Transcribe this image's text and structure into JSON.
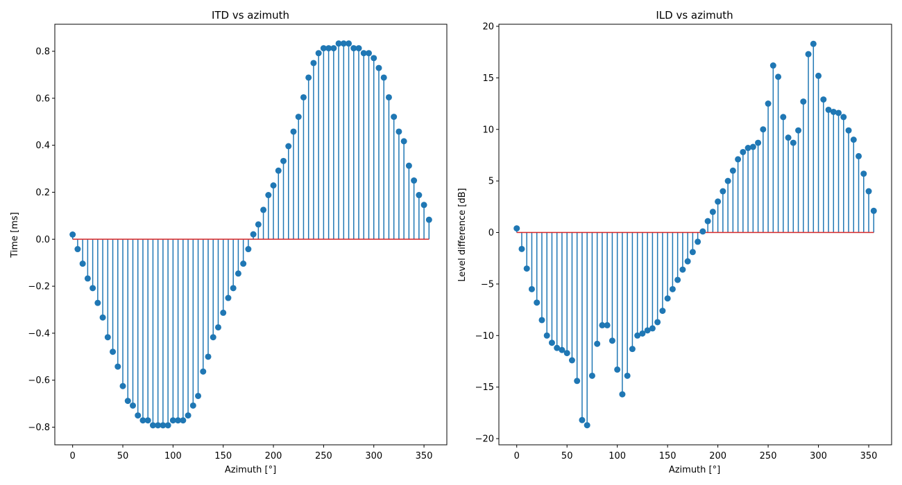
{
  "chart_data": [
    {
      "type": "stem",
      "title": "ITD vs azimuth",
      "xlabel": "Azimuth [°]",
      "ylabel": "Time [ms]",
      "xlim": [
        -17.75,
        372.75
      ],
      "ylim": [
        -0.875,
        0.915
      ],
      "xticks": [
        0,
        50,
        100,
        150,
        200,
        250,
        300,
        350
      ],
      "yticks": [
        -0.8,
        -0.6,
        -0.4,
        -0.2,
        0.0,
        0.2,
        0.4,
        0.6,
        0.8
      ],
      "ytick_labels": [
        "−0.8",
        "−0.6",
        "−0.4",
        "−0.2",
        "0.0",
        "0.2",
        "0.4",
        "0.6",
        "0.8"
      ],
      "baseline": 0,
      "colors": {
        "stem": "#1f77b4",
        "marker": "#1f77b4",
        "baseline": "#d62728"
      },
      "x": [
        0,
        5,
        10,
        15,
        20,
        25,
        30,
        35,
        40,
        45,
        50,
        55,
        60,
        65,
        70,
        75,
        80,
        85,
        90,
        95,
        100,
        105,
        110,
        115,
        120,
        125,
        130,
        135,
        140,
        145,
        150,
        155,
        160,
        165,
        170,
        175,
        180,
        185,
        190,
        195,
        200,
        205,
        210,
        215,
        220,
        225,
        230,
        235,
        240,
        245,
        250,
        255,
        260,
        265,
        270,
        275,
        280,
        285,
        290,
        295,
        300,
        305,
        310,
        315,
        320,
        325,
        330,
        335,
        340,
        345,
        350,
        355
      ],
      "y": [
        0.02,
        -0.042,
        -0.104,
        -0.167,
        -0.208,
        -0.271,
        -0.333,
        -0.417,
        -0.479,
        -0.542,
        -0.625,
        -0.688,
        -0.708,
        -0.75,
        -0.771,
        -0.771,
        -0.792,
        -0.792,
        -0.792,
        -0.792,
        -0.771,
        -0.771,
        -0.771,
        -0.75,
        -0.708,
        -0.667,
        -0.563,
        -0.5,
        -0.417,
        -0.375,
        -0.313,
        -0.25,
        -0.208,
        -0.146,
        -0.104,
        -0.042,
        0.021,
        0.063,
        0.125,
        0.188,
        0.229,
        0.292,
        0.333,
        0.396,
        0.458,
        0.521,
        0.604,
        0.688,
        0.75,
        0.792,
        0.813,
        0.813,
        0.813,
        0.833,
        0.833,
        0.833,
        0.813,
        0.813,
        0.792,
        0.792,
        0.771,
        0.729,
        0.688,
        0.604,
        0.521,
        0.458,
        0.417,
        0.313,
        0.25,
        0.188,
        0.146,
        0.083
      ]
    },
    {
      "type": "stem",
      "title": "ILD vs azimuth",
      "xlabel": "Azimuth [°]",
      "ylabel": "Level difference [dB]",
      "xlim": [
        -17.75,
        372.75
      ],
      "ylim": [
        -20.6,
        20.2
      ],
      "xticks": [
        0,
        50,
        100,
        150,
        200,
        250,
        300,
        350
      ],
      "yticks": [
        -20,
        -15,
        -10,
        -5,
        0,
        5,
        10,
        15,
        20
      ],
      "ytick_labels": [
        "−20",
        "−15",
        "−10",
        "−5",
        "0",
        "5",
        "10",
        "15",
        "20"
      ],
      "baseline": 0,
      "colors": {
        "stem": "#1f77b4",
        "marker": "#1f77b4",
        "baseline": "#d62728"
      },
      "x": [
        0,
        5,
        10,
        15,
        20,
        25,
        30,
        35,
        40,
        45,
        50,
        55,
        60,
        65,
        70,
        75,
        80,
        85,
        90,
        95,
        100,
        105,
        110,
        115,
        120,
        125,
        130,
        135,
        140,
        145,
        150,
        155,
        160,
        165,
        170,
        175,
        180,
        185,
        190,
        195,
        200,
        205,
        210,
        215,
        220,
        225,
        230,
        235,
        240,
        245,
        250,
        255,
        260,
        265,
        270,
        275,
        280,
        285,
        290,
        295,
        300,
        305,
        310,
        315,
        320,
        325,
        330,
        335,
        340,
        345,
        350,
        355
      ],
      "y": [
        0.4,
        -1.6,
        -3.5,
        -5.5,
        -6.8,
        -8.5,
        -10.0,
        -10.7,
        -11.2,
        -11.4,
        -11.7,
        -12.4,
        -14.4,
        -18.2,
        -18.7,
        -13.9,
        -10.8,
        -9.0,
        -9.0,
        -10.5,
        -13.3,
        -15.7,
        -13.9,
        -11.3,
        -10.0,
        -9.8,
        -9.5,
        -9.3,
        -8.7,
        -7.6,
        -6.4,
        -5.5,
        -4.6,
        -3.6,
        -2.8,
        -1.9,
        -0.9,
        0.1,
        1.1,
        2.0,
        3.0,
        4.0,
        5.0,
        6.0,
        7.1,
        7.8,
        8.2,
        8.3,
        8.7,
        10.0,
        12.5,
        16.2,
        15.1,
        11.2,
        9.2,
        8.7,
        9.9,
        12.7,
        17.3,
        18.3,
        15.2,
        12.9,
        11.9,
        11.7,
        11.6,
        11.2,
        9.9,
        9.0,
        7.4,
        5.7,
        4.0,
        2.1
      ]
    }
  ]
}
